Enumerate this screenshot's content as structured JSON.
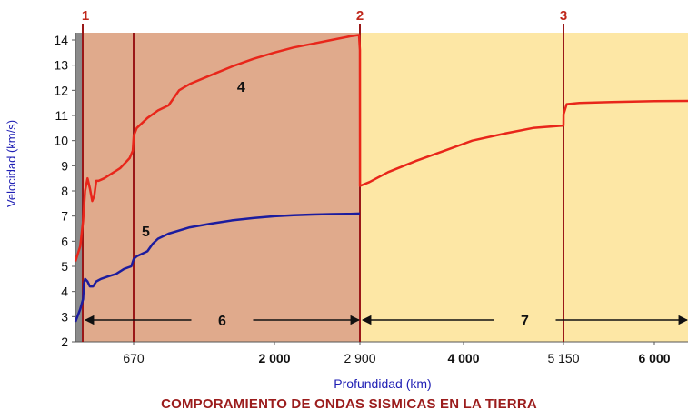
{
  "chart_data": {
    "type": "line",
    "title": "COMPORAMIENTO DE ONDAS SISMICAS EN LA TIERRA",
    "xlabel": "Profundidad (km)",
    "ylabel": "Velocidad (km/s)",
    "ylim": [
      2,
      14.3
    ],
    "y_ticks": [
      "2",
      "3",
      "4",
      "5",
      "6",
      "7",
      "8",
      "9",
      "10",
      "11",
      "12",
      "13",
      "14"
    ],
    "x_ticks": [
      {
        "label": "670",
        "value": 670,
        "bold": false
      },
      {
        "label": "2 000",
        "value": 2000,
        "bold": true
      },
      {
        "label": "2 900",
        "value": 2900,
        "bold": false
      },
      {
        "label": "4 000",
        "value": 4000,
        "bold": true
      },
      {
        "label": "5 150",
        "value": 5150,
        "bold": false
      },
      {
        "label": "6 000",
        "value": 6000,
        "bold": true
      }
    ],
    "regions": [
      {
        "from": 0,
        "to": 30,
        "color": "#8a8a8a"
      },
      {
        "from": 30,
        "to": 2900,
        "color": "#e0aa8c"
      },
      {
        "from": 2900,
        "to": 6371,
        "color": "#fde7a5"
      }
    ],
    "boundaries": [
      {
        "value": 30,
        "label": "1"
      },
      {
        "value": 670,
        "label": ""
      },
      {
        "value": 2900,
        "label": "2"
      },
      {
        "value": 5150,
        "label": "3"
      }
    ],
    "series": [
      {
        "name": "4",
        "color": "#e8261a",
        "x": [
          0,
          20,
          35,
          60,
          90,
          120,
          150,
          175,
          200,
          230,
          300,
          400,
          500,
          620,
          660,
          672,
          700,
          800,
          900,
          1000,
          1050,
          1100,
          1200,
          1400,
          1600,
          1800,
          2000,
          2200,
          2400,
          2600,
          2800,
          2890,
          2900,
          2901,
          3000,
          3200,
          3500,
          3800,
          4100,
          4500,
          4800,
          5150,
          5151,
          5180,
          5300,
          5600,
          6000,
          6371
        ],
        "y": [
          5.2,
          5.8,
          6.8,
          8.0,
          8.5,
          8.1,
          7.6,
          7.8,
          8.4,
          8.4,
          8.5,
          8.7,
          8.9,
          9.3,
          9.6,
          10.2,
          10.5,
          10.9,
          11.2,
          11.4,
          11.7,
          12.0,
          12.25,
          12.6,
          12.95,
          13.25,
          13.5,
          13.7,
          13.85,
          14.0,
          14.15,
          14.2,
          13.6,
          8.2,
          8.35,
          8.75,
          9.2,
          9.6,
          10.0,
          10.3,
          10.5,
          10.6,
          11.05,
          11.45,
          11.5,
          11.53,
          11.57,
          11.58
        ]
      },
      {
        "name": "5",
        "color": "#1c1c9e",
        "x": [
          0,
          20,
          35,
          45,
          60,
          90,
          120,
          160,
          200,
          260,
          350,
          450,
          550,
          640,
          672,
          700,
          800,
          850,
          900,
          1000,
          1200,
          1400,
          1600,
          1800,
          2000,
          2200,
          2400,
          2600,
          2800,
          2900
        ],
        "y": [
          2.8,
          3.3,
          3.7,
          4.3,
          4.5,
          4.4,
          4.2,
          4.2,
          4.4,
          4.5,
          4.6,
          4.7,
          4.9,
          5.0,
          5.3,
          5.4,
          5.6,
          5.9,
          6.1,
          6.3,
          6.55,
          6.7,
          6.83,
          6.92,
          6.99,
          7.03,
          7.06,
          7.08,
          7.09,
          7.1
        ]
      }
    ],
    "ranges": [
      {
        "from": 30,
        "to": 2900,
        "label": "6"
      },
      {
        "from": 2900,
        "to": 6371,
        "label": "7"
      }
    ]
  }
}
